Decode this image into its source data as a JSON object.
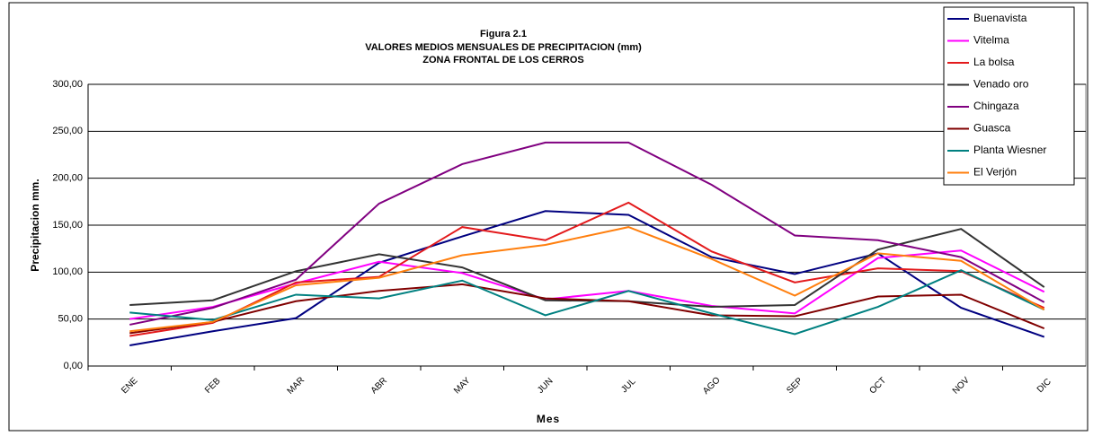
{
  "chart_data": {
    "type": "line",
    "title": "Figura  2.1",
    "subtitle": [
      "VALORES MEDIOS MENSUALES DE PRECIPITACION (mm)",
      "ZONA FRONTAL DE LOS CERROS"
    ],
    "x_label": "Mes",
    "y_label": "Precipitacion mm.",
    "categories": [
      "ENE",
      "FEB",
      "MAR",
      "ABR",
      "MAY",
      "JUN",
      "JUL",
      "AGO",
      "SEP",
      "OCT",
      "NOV",
      "DIC"
    ],
    "series": [
      {
        "name": "Buenavista",
        "color": "#000080",
        "values": [
          22,
          37,
          51,
          110,
          138,
          165,
          161,
          116,
          98,
          120,
          62,
          31
        ]
      },
      {
        "name": "Vitelma",
        "color": "#ff00ff",
        "values": [
          50,
          63,
          88,
          111,
          99,
          71,
          80,
          64,
          56,
          115,
          123,
          79
        ]
      },
      {
        "name": "La bolsa",
        "color": "#e31a1c",
        "values": [
          32,
          46,
          89,
          95,
          148,
          134,
          174,
          122,
          89,
          104,
          101,
          62
        ]
      },
      {
        "name": "Venado oro",
        "color": "#333333",
        "values": [
          65,
          70,
          101,
          119,
          105,
          70,
          69,
          63,
          65,
          124,
          146,
          84
        ]
      },
      {
        "name": "Chingaza",
        "color": "#800080",
        "values": [
          44,
          62,
          92,
          173,
          215,
          238,
          238,
          193,
          139,
          134,
          116,
          68
        ]
      },
      {
        "name": "Guasca",
        "color": "#800000",
        "values": [
          35,
          47,
          69,
          80,
          87,
          72,
          69,
          54,
          53,
          74,
          76,
          40
        ]
      },
      {
        "name": "Planta Wiesner",
        "color": "#008080",
        "values": [
          57,
          49,
          76,
          72,
          91,
          54,
          80,
          56,
          34,
          63,
          102,
          60
        ]
      },
      {
        "name": "El Verjón",
        "color": "#ff7f0e",
        "values": [
          37,
          47,
          86,
          94,
          118,
          129,
          148,
          114,
          75,
          120,
          112,
          60
        ]
      }
    ],
    "ylim": [
      0,
      300
    ],
    "yticks": [
      {
        "value": 0,
        "label": "0,00"
      },
      {
        "value": 50,
        "label": "50,00"
      },
      {
        "value": 100,
        "label": "100,00"
      },
      {
        "value": 150,
        "label": "150,00"
      },
      {
        "value": 200,
        "label": "200,00"
      },
      {
        "value": 250,
        "label": "250,00"
      },
      {
        "value": 300,
        "label": "300,00"
      }
    ],
    "grid": true,
    "legend": "top-right"
  }
}
